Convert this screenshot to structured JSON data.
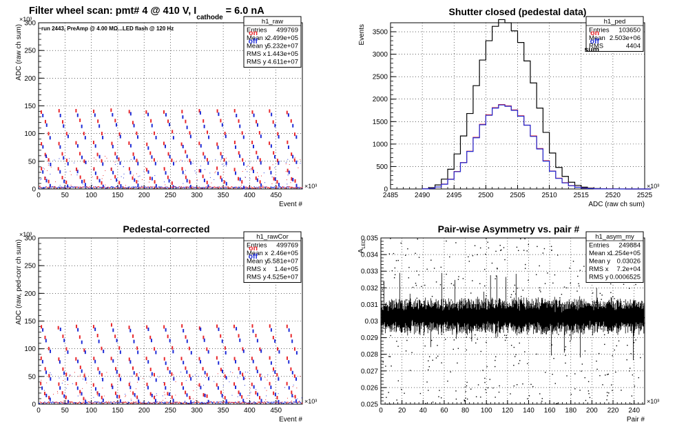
{
  "chart_data": [
    {
      "id": "raw",
      "type": "scatter",
      "title": "Filter wheel scan: pmt#   4 @   410 V, I",
      "title_sub": "cathode",
      "title_tail": " = 6.0 nA",
      "annotation": "run 2443, PreAmp @ 4.00 MΩ...LED flash @  120 Hz",
      "xlabel": "Event #",
      "ylabel": "ADC (raw ch sum)",
      "x_exponent": "×10³",
      "y_exponent": "×10³",
      "xlim": [
        0,
        500
      ],
      "ylim": [
        0,
        300
      ],
      "x_ticks": [
        "0",
        "50",
        "100",
        "150",
        "200",
        "250",
        "300",
        "350",
        "400",
        "450"
      ],
      "y_ticks": [
        "0",
        "50",
        "100",
        "150",
        "200",
        "250",
        "300"
      ],
      "legend": [
        "on",
        "off"
      ],
      "legend_colors": [
        "#e8262a",
        "#1d2bd6"
      ],
      "grid": true,
      "bands_on": [
        140,
        122,
        100,
        82,
        64,
        52,
        36,
        20,
        12
      ],
      "bands_off": [
        134,
        114,
        94,
        76,
        58,
        46,
        30,
        16,
        6
      ],
      "stats": {
        "name": "h1_raw",
        "rows": [
          {
            "label": "Entries",
            "value": "499769"
          },
          {
            "label": "Mean x",
            "value": "2.499e+05"
          },
          {
            "label": "Mean y",
            "value": "5.232e+07"
          },
          {
            "label": "RMS x",
            "value": "1.443e+05"
          },
          {
            "label": "RMS y",
            "value": "4.611e+07"
          }
        ]
      }
    },
    {
      "id": "ped",
      "type": "line",
      "title": "Shutter closed (pedestal data)",
      "xlabel": "ADC (raw ch sum)",
      "ylabel": "Events",
      "x_exponent": "×10³",
      "xlim": [
        2485,
        2525
      ],
      "ylim": [
        0,
        3700
      ],
      "x_ticks": [
        "2485",
        "2490",
        "2495",
        "2500",
        "2505",
        "2510",
        "2515",
        "2520",
        "2525"
      ],
      "y_ticks": [
        "0",
        "500",
        "1000",
        "1500",
        "2000",
        "2500",
        "3000",
        "3500"
      ],
      "legend": [
        "on",
        "off",
        "sum"
      ],
      "legend_colors": [
        "#e8262a",
        "#1d2bd6",
        "#000000"
      ],
      "grid": true,
      "x": [
        2490,
        2491,
        2492,
        2493,
        2494,
        2495,
        2496,
        2497,
        2498,
        2499,
        2500,
        2501,
        2502,
        2503,
        2504,
        2505,
        2506,
        2507,
        2508,
        2509,
        2510,
        2511,
        2512,
        2513,
        2514,
        2515,
        2516,
        2517,
        2518,
        2519,
        2520,
        2521,
        2522,
        2523,
        2524,
        2525
      ],
      "series": [
        {
          "name": "sum",
          "values": [
            5,
            30,
            90,
            220,
            440,
            780,
            1180,
            1680,
            2300,
            2870,
            3300,
            3620,
            3770,
            3700,
            3520,
            3260,
            2850,
            2360,
            1800,
            1260,
            800,
            480,
            280,
            150,
            80,
            40,
            20,
            10,
            5,
            3,
            2,
            1,
            0,
            0,
            0,
            0
          ]
        },
        {
          "name": "on",
          "values": [
            2,
            15,
            45,
            110,
            220,
            390,
            590,
            840,
            1150,
            1440,
            1650,
            1810,
            1880,
            1850,
            1760,
            1630,
            1420,
            1180,
            900,
            630,
            400,
            240,
            140,
            75,
            40,
            20,
            10,
            5,
            3,
            2,
            1,
            1,
            0,
            0,
            0,
            0
          ]
        },
        {
          "name": "off",
          "values": [
            2,
            14,
            45,
            105,
            215,
            385,
            585,
            835,
            1140,
            1430,
            1640,
            1800,
            1870,
            1840,
            1750,
            1620,
            1420,
            1170,
            890,
            620,
            395,
            235,
            135,
            72,
            38,
            18,
            9,
            4,
            2,
            1,
            1,
            0,
            0,
            0,
            0,
            0
          ]
        }
      ],
      "stats": {
        "name": "h1_ped",
        "rows": [
          {
            "label": "Entries",
            "value": "103650"
          },
          {
            "label": "Mean",
            "value": "2.503e+06"
          },
          {
            "label": "RMS",
            "value": "4404"
          }
        ]
      }
    },
    {
      "id": "rawCor",
      "type": "scatter",
      "title": "Pedestal-corrected",
      "xlabel": "Event #",
      "ylabel": "ADC (raw, ped-corr ch sum)",
      "x_exponent": "×10³",
      "y_exponent": "×10³",
      "xlim": [
        0,
        500
      ],
      "ylim": [
        0,
        300
      ],
      "x_ticks": [
        "0",
        "50",
        "100",
        "150",
        "200",
        "250",
        "300",
        "350",
        "400",
        "450"
      ],
      "y_ticks": [
        "0",
        "50",
        "100",
        "150",
        "200",
        "250",
        "300"
      ],
      "legend": [
        "on",
        "off"
      ],
      "legend_colors": [
        "#e8262a",
        "#1d2bd6"
      ],
      "grid": true,
      "bands_on": [
        140,
        122,
        100,
        82,
        64,
        52,
        36,
        20,
        12
      ],
      "bands_off": [
        134,
        114,
        94,
        76,
        58,
        46,
        30,
        16,
        6
      ],
      "stats": {
        "name": "h1_rawCor",
        "rows": [
          {
            "label": "Entries",
            "value": "499769"
          },
          {
            "label": "Mean x",
            "value": "2.46e+05"
          },
          {
            "label": "Mean y",
            "value": "5.581e+07"
          },
          {
            "label": "RMS x",
            "value": "1.4e+05"
          },
          {
            "label": "RMS y",
            "value": "4.525e+07"
          }
        ]
      }
    },
    {
      "id": "asym",
      "type": "scatter",
      "title": "Pair-wise Asymmetry vs. pair #",
      "xlabel": "Pair #",
      "ylabel": "A",
      "ylabel_sub": "LED",
      "x_exponent": "×10³",
      "xlim": [
        0,
        250
      ],
      "ylim": [
        0.025,
        0.035
      ],
      "x_ticks": [
        "0",
        "20",
        "40",
        "60",
        "80",
        "100",
        "120",
        "140",
        "160",
        "180",
        "200",
        "220",
        "240"
      ],
      "y_ticks": [
        "0.025",
        "0.026",
        "0.027",
        "0.028",
        "0.029",
        "0.03",
        "0.031",
        "0.032",
        "0.033",
        "0.034",
        "0.035"
      ],
      "grid": true,
      "mean": 0.0303,
      "band_halfwidth": 0.0007,
      "stats": {
        "name": "h1_asym_my",
        "rows": [
          {
            "label": "Entries",
            "value": "249884"
          },
          {
            "label": "Mean x",
            "value": "1.254e+05"
          },
          {
            "label": "Mean y",
            "value": "0.03026"
          },
          {
            "label": "RMS x",
            "value": "7.2e+04"
          },
          {
            "label": "RMS y",
            "value": "0.0006525"
          }
        ]
      }
    }
  ]
}
